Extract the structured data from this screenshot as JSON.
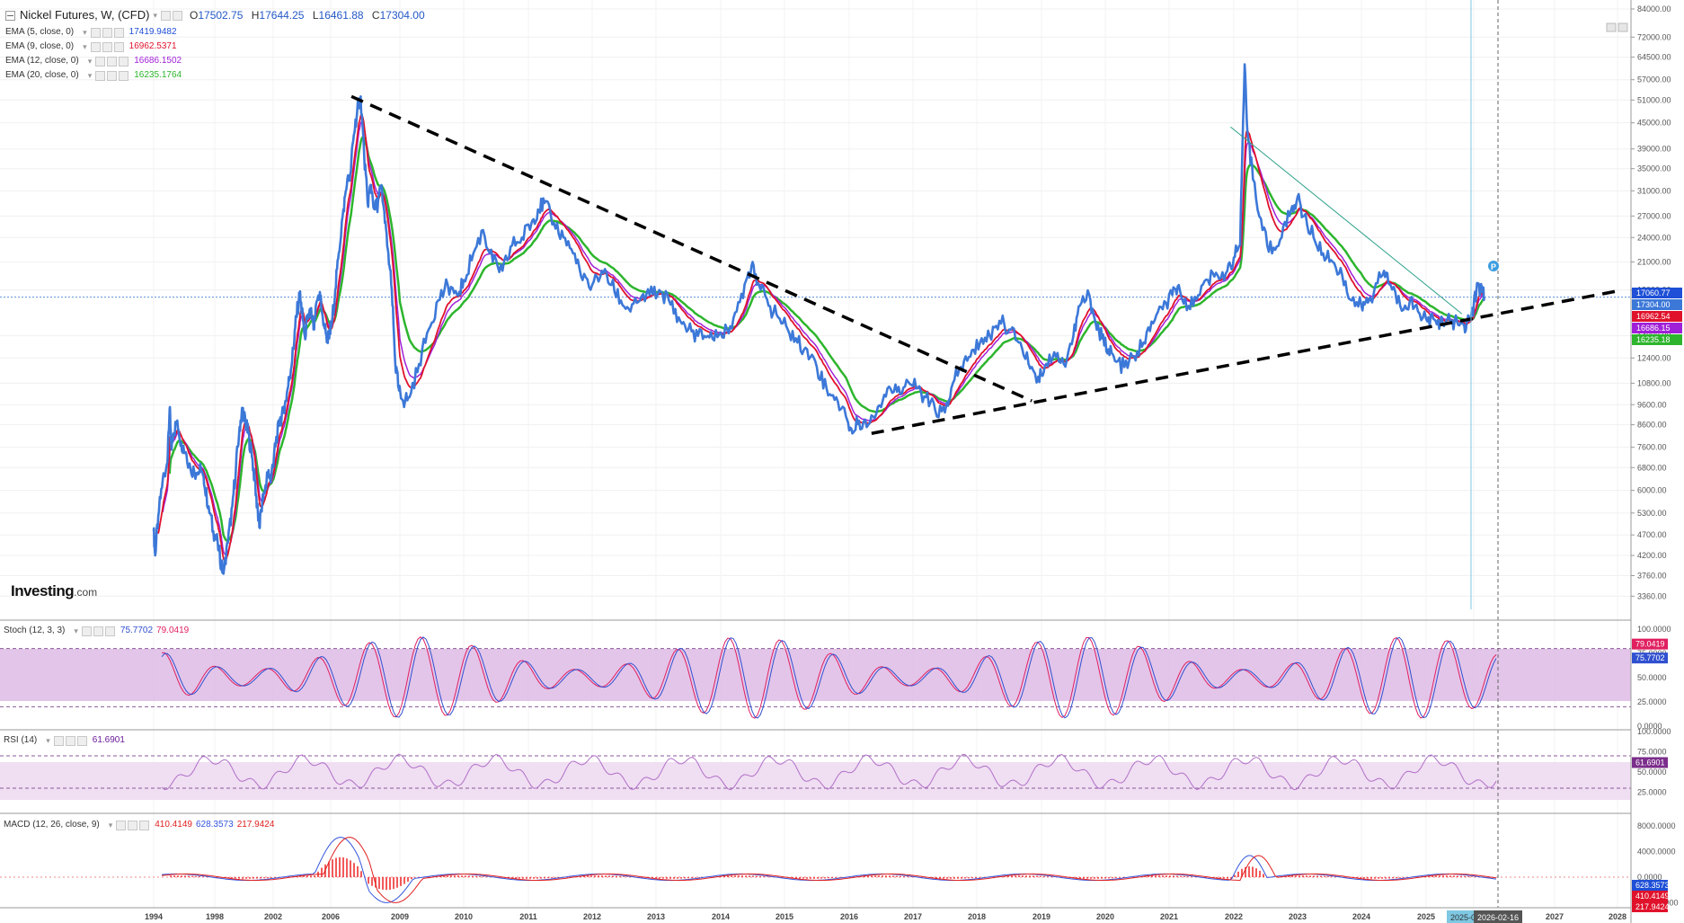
{
  "header": {
    "title": "Nickel Futures, W, (CFD)",
    "ohlc": [
      {
        "key": "O",
        "value": "17502.75"
      },
      {
        "key": "H",
        "value": "17644.25"
      },
      {
        "key": "L",
        "value": "16461.88"
      },
      {
        "key": "C",
        "value": "17304.00"
      }
    ],
    "indicators": [
      {
        "name": "EMA (5, close, 0)",
        "value": "17419.9482",
        "color": "#1e4fd6"
      },
      {
        "name": "EMA (9, close, 0)",
        "value": "16962.5371",
        "color": "#e0122b"
      },
      {
        "name": "EMA (12, close, 0)",
        "value": "16686.1502",
        "color": "#a020d8"
      },
      {
        "name": "EMA (20, close, 0)",
        "value": "16235.1764",
        "color": "#2db52d"
      }
    ]
  },
  "logo": {
    "brand": "Investing",
    "suffix": ".com"
  },
  "colors": {
    "price": "#3c78d8",
    "ema5": "#1e4fd6",
    "ema9": "#e0122b",
    "ema12": "#a020d8",
    "ema20": "#2db52d",
    "stochBand": "#dcb6e3",
    "rsiBand": "#f0def2",
    "stochK": "#3050d0",
    "stochD": "#e02060",
    "rsiLine": "#b070c8",
    "macdLine": "#3355dd",
    "signalLine": "#e02020",
    "histogram": "#ee2222",
    "cursorLine": "#7ec8e3",
    "trendLine": "#000000",
    "thinTrend": "#2aa088"
  },
  "panels": {
    "stoch": {
      "label": "Stoch (12, 3, 3)",
      "k_value": "75.7702",
      "d_value": "79.0419"
    },
    "rsi": {
      "label": "RSI (14)",
      "value": "61.6901"
    },
    "macd": {
      "label": "MACD (12, 26, close, 9)",
      "hist_value": "410.4149",
      "macd_value": "628.3573",
      "signal_value": "217.9424"
    }
  },
  "price_scale_badges": [
    "17060.77",
    "17304.00",
    "16962.54",
    "16686.15",
    "16235.18"
  ],
  "marker_label": "P",
  "cursor_labels": {
    "highlight": "2025-0",
    "date": "2026-02-16"
  },
  "chart_data": [
    {
      "type": "line",
      "title": "Nickel Futures, W, (CFD)",
      "y_scale": "log",
      "ylim": [
        3300,
        84000
      ],
      "xlim": [
        1994,
        2028
      ],
      "y_ticks": [
        "84000.00",
        "72000.00",
        "64500.00",
        "57000.00",
        "51000.00",
        "45000.00",
        "39000.00",
        "35000.00",
        "31000.00",
        "27000.00",
        "24000.00",
        "21000.00",
        "18000.00",
        "14000.00",
        "12400.00",
        "10800.00",
        "9600.00",
        "8600.00",
        "7600.00",
        "6800.00",
        "6000.00",
        "5300.00",
        "4700.00",
        "4200.00",
        "3760.00",
        "3360.00"
      ],
      "x_ticks": [
        "1994",
        "1998",
        "2002",
        "2006",
        "2009",
        "2010",
        "2011",
        "2012",
        "2013",
        "2014",
        "2015",
        "2016",
        "2017",
        "2018",
        "2019",
        "2020",
        "2021",
        "2022",
        "2023",
        "2024",
        "2025",
        "2026",
        "2027",
        "2028"
      ],
      "series": [
        {
          "name": "Nickel Futures",
          "points": [
            [
              1994.0,
              4800
            ],
            [
              1994.1,
              4200
            ],
            [
              1994.3,
              5200
            ],
            [
              1994.6,
              6400
            ],
            [
              1994.9,
              7000
            ],
            [
              1995.05,
              9400
            ],
            [
              1995.15,
              7600
            ],
            [
              1995.3,
              8200
            ],
            [
              1995.55,
              8800
            ],
            [
              1995.8,
              7800
            ],
            [
              1996.1,
              7400
            ],
            [
              1996.4,
              6800
            ],
            [
              1996.8,
              6600
            ],
            [
              1997.1,
              6700
            ],
            [
              1997.3,
              6200
            ],
            [
              1997.6,
              5500
            ],
            [
              1997.9,
              4800
            ],
            [
              1998.2,
              4500
            ],
            [
              1998.45,
              4000
            ],
            [
              1998.6,
              3800
            ],
            [
              1998.9,
              4500
            ],
            [
              1999.2,
              5500
            ],
            [
              1999.45,
              6800
            ],
            [
              1999.7,
              8500
            ],
            [
              1999.9,
              9400
            ],
            [
              2000.1,
              8700
            ],
            [
              2000.3,
              8200
            ],
            [
              2000.55,
              7200
            ],
            [
              2000.75,
              6300
            ],
            [
              2000.9,
              5500
            ],
            [
              2001.05,
              4900
            ],
            [
              2001.25,
              5600
            ],
            [
              2001.45,
              6100
            ],
            [
              2001.65,
              6600
            ],
            [
              2001.85,
              6400
            ],
            [
              2002.05,
              7200
            ],
            [
              2002.25,
              8000
            ],
            [
              2002.45,
              8800
            ],
            [
              2002.75,
              9200
            ],
            [
              2002.95,
              10200
            ],
            [
              2003.15,
              11200
            ],
            [
              2003.4,
              13000
            ],
            [
              2003.6,
              15500
            ],
            [
              2003.85,
              17500
            ],
            [
              2004.0,
              16000
            ],
            [
              2004.2,
              14000
            ],
            [
              2004.4,
              15500
            ],
            [
              2004.6,
              16000
            ],
            [
              2004.85,
              14500
            ],
            [
              2005.05,
              17000
            ],
            [
              2005.25,
              17800
            ],
            [
              2005.45,
              15500
            ],
            [
              2005.7,
              14000
            ],
            [
              2005.9,
              13800
            ],
            [
              2006.05,
              15000
            ],
            [
              2006.2,
              18000
            ],
            [
              2006.35,
              22000
            ],
            [
              2006.55,
              28000
            ],
            [
              2006.7,
              32000
            ],
            [
              2006.85,
              34000
            ],
            [
              2007.0,
              42000
            ],
            [
              2007.15,
              48000
            ],
            [
              2007.3,
              52000
            ],
            [
              2007.45,
              38000
            ],
            [
              2007.6,
              29000
            ],
            [
              2007.75,
              32000
            ],
            [
              2007.9,
              28000
            ],
            [
              2008.05,
              29000
            ],
            [
              2008.2,
              32000
            ],
            [
              2008.35,
              26000
            ],
            [
              2008.5,
              22000
            ],
            [
              2008.65,
              18000
            ],
            [
              2008.8,
              12000
            ],
            [
              2008.95,
              10500
            ],
            [
              2009.05,
              9800
            ],
            [
              2009.15,
              10000
            ],
            [
              2009.3,
              12000
            ],
            [
              2009.45,
              14500
            ],
            [
              2009.6,
              17000
            ],
            [
              2009.75,
              18500
            ],
            [
              2009.9,
              17500
            ],
            [
              2010.0,
              19000
            ],
            [
              2010.15,
              22000
            ],
            [
              2010.3,
              25000
            ],
            [
              2010.45,
              21000
            ],
            [
              2010.6,
              20000
            ],
            [
              2010.75,
              23000
            ],
            [
              2010.9,
              24000
            ],
            [
              2011.05,
              26000
            ],
            [
              2011.15,
              28000
            ],
            [
              2011.25,
              29000
            ],
            [
              2011.4,
              26000
            ],
            [
              2011.55,
              24000
            ],
            [
              2011.7,
              22000
            ],
            [
              2011.85,
              19000
            ],
            [
              2012.0,
              18500
            ],
            [
              2012.15,
              20000
            ],
            [
              2012.3,
              18500
            ],
            [
              2012.45,
              17000
            ],
            [
              2012.6,
              16000
            ],
            [
              2012.75,
              17000
            ],
            [
              2012.9,
              17500
            ],
            [
              2013.05,
              18000
            ],
            [
              2013.2,
              17000
            ],
            [
              2013.35,
              15500
            ],
            [
              2013.5,
              14500
            ],
            [
              2013.65,
              14000
            ],
            [
              2013.8,
              14000
            ],
            [
              2013.95,
              13900
            ],
            [
              2014.1,
              14500
            ],
            [
              2014.25,
              16000
            ],
            [
              2014.4,
              19000
            ],
            [
              2014.5,
              21000
            ],
            [
              2014.6,
              18500
            ],
            [
              2014.75,
              16500
            ],
            [
              2014.9,
              15500
            ],
            [
              2015.05,
              14500
            ],
            [
              2015.2,
              13500
            ],
            [
              2015.35,
              13000
            ],
            [
              2015.5,
              11800
            ],
            [
              2015.65,
              10500
            ],
            [
              2015.8,
              10000
            ],
            [
              2015.95,
              9000
            ],
            [
              2016.05,
              8200
            ],
            [
              2016.15,
              8800
            ],
            [
              2016.3,
              8600
            ],
            [
              2016.45,
              9500
            ],
            [
              2016.6,
              10500
            ],
            [
              2016.75,
              10300
            ],
            [
              2016.9,
              11000
            ],
            [
              2017.05,
              10500
            ],
            [
              2017.2,
              10000
            ],
            [
              2017.35,
              9300
            ],
            [
              2017.5,
              9200
            ],
            [
              2017.6,
              10500
            ],
            [
              2017.75,
              11800
            ],
            [
              2017.9,
              12500
            ],
            [
              2018.05,
              13500
            ],
            [
              2018.2,
              14000
            ],
            [
              2018.35,
              15200
            ],
            [
              2018.5,
              14500
            ],
            [
              2018.65,
              13500
            ],
            [
              2018.8,
              12000
            ],
            [
              2018.95,
              11200
            ],
            [
              2019.05,
              11800
            ],
            [
              2019.2,
              12800
            ],
            [
              2019.35,
              12000
            ],
            [
              2019.5,
              14000
            ],
            [
              2019.6,
              16500
            ],
            [
              2019.75,
              17500
            ],
            [
              2019.85,
              15000
            ],
            [
              2019.95,
              13800
            ],
            [
              2020.05,
              13000
            ],
            [
              2020.15,
              12200
            ],
            [
              2020.3,
              11800
            ],
            [
              2020.45,
              12500
            ],
            [
              2020.6,
              13500
            ],
            [
              2020.75,
              15000
            ],
            [
              2020.9,
              16200
            ],
            [
              2021.05,
              17500
            ],
            [
              2021.15,
              18500
            ],
            [
              2021.3,
              16500
            ],
            [
              2021.45,
              17500
            ],
            [
              2021.6,
              19000
            ],
            [
              2021.75,
              19500
            ],
            [
              2021.9,
              20000
            ],
            [
              2022.0,
              21500
            ],
            [
              2022.1,
              23000
            ],
            [
              2022.17,
              62000
            ],
            [
              2022.22,
              42000
            ],
            [
              2022.3,
              33000
            ],
            [
              2022.45,
              25000
            ],
            [
              2022.6,
              22000
            ],
            [
              2022.75,
              24000
            ],
            [
              2022.9,
              28000
            ],
            [
              2023.0,
              30000
            ],
            [
              2023.1,
              27000
            ],
            [
              2023.25,
              24000
            ],
            [
              2023.4,
              22000
            ],
            [
              2023.55,
              21000
            ],
            [
              2023.7,
              19500
            ],
            [
              2023.85,
              17000
            ],
            [
              2024.0,
              16500
            ],
            [
              2024.1,
              16800
            ],
            [
              2024.2,
              18000
            ],
            [
              2024.35,
              20000
            ],
            [
              2024.45,
              18500
            ],
            [
              2024.6,
              16500
            ],
            [
              2024.75,
              17000
            ],
            [
              2024.9,
              15800
            ],
            [
              2025.05,
              15500
            ],
            [
              2025.2,
              15200
            ],
            [
              2025.35,
              15000
            ],
            [
              2025.5,
              15200
            ],
            [
              2025.65,
              15100
            ],
            [
              2025.8,
              14800
            ],
            [
              2025.9,
              15200
            ],
            [
              2026.0,
              16500
            ],
            [
              2026.05,
              18500
            ],
            [
              2026.1,
              17800
            ],
            [
              2026.13,
              17304
            ]
          ]
        }
      ],
      "annotations": {
        "current_price_line": 17304,
        "trend_lines": [
          {
            "from": [
              2006.9,
              52000
            ],
            "to": [
              2018.85,
              9800
            ],
            "style": "dashed"
          },
          {
            "from": [
              2016.35,
              8200
            ],
            "to": [
              2028.2,
              17900
            ],
            "style": "dashed"
          },
          {
            "from": [
              2021.95,
              44000
            ],
            "to": [
              2025.75,
              15800
            ],
            "style": "thin"
          }
        ]
      }
    },
    {
      "type": "line",
      "title": "Stoch (12, 3, 3)",
      "ylim": [
        0,
        100
      ],
      "y_ticks": [
        "100.0000",
        "75.0000",
        "50.0000",
        "25.0000",
        "0.0000"
      ],
      "band": [
        20,
        80
      ],
      "series": [
        {
          "name": "%K",
          "last": 75.7702
        },
        {
          "name": "%D",
          "last": 79.0419
        }
      ]
    },
    {
      "type": "line",
      "title": "RSI (14)",
      "ylim": [
        0,
        100
      ],
      "y_ticks": [
        "100.0000",
        "75.0000",
        "50.0000",
        "25.0000"
      ],
      "band": [
        30,
        70
      ],
      "series": [
        {
          "name": "RSI",
          "last": 61.6901
        }
      ]
    },
    {
      "type": "line",
      "title": "MACD (12, 26, close, 9)",
      "ylim": [
        -4500,
        9000
      ],
      "y_ticks": [
        "8000.0000",
        "4000.0000",
        "0.0000",
        "-4000.0000"
      ],
      "series": [
        {
          "name": "MACD",
          "last": 628.3573
        },
        {
          "name": "Signal",
          "last": 217.9424
        },
        {
          "name": "Histogram",
          "last": 410.4149
        }
      ]
    }
  ]
}
